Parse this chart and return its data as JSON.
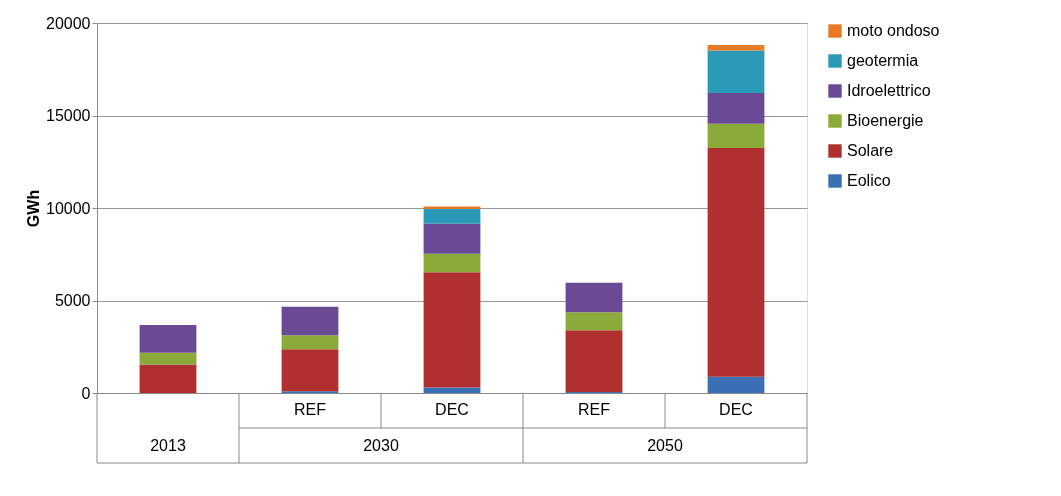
{
  "chart_data": {
    "type": "bar",
    "stacked": true,
    "ylabel": "GWh",
    "categories": [
      null,
      "REF",
      "DEC",
      "REF",
      "DEC"
    ],
    "series": [
      {
        "name": "Eolico",
        "color": "#3a6fb5",
        "values": [
          null,
          100,
          300,
          50,
          880
        ]
      },
      {
        "name": "Solare",
        "color": "#b03030",
        "values": [
          1540,
          2270,
          6230,
          3340,
          12370
        ]
      },
      {
        "name": "Bioenergie",
        "color": "#8aab3a",
        "values": [
          630,
          750,
          1000,
          980,
          1310
        ]
      },
      {
        "name": "Idroelettrico",
        "color": "#6a4a94",
        "values": [
          1510,
          1540,
          1620,
          1590,
          1650
        ]
      },
      {
        "name": "geotermia",
        "color": "#2a9ab8",
        "values": [
          0,
          0,
          790,
          0,
          2300
        ]
      },
      {
        "name": "moto ondoso",
        "color": "#e87a25",
        "values": [
          0,
          0,
          140,
          0,
          300
        ]
      }
    ],
    "annotations": [
      "2013",
      "2030",
      "2050"
    ],
    "ylim": [
      0,
      20000
    ],
    "yticks": [
      0,
      5000,
      10000,
      15000,
      20000
    ],
    "grid": "y",
    "legend": "right"
  }
}
